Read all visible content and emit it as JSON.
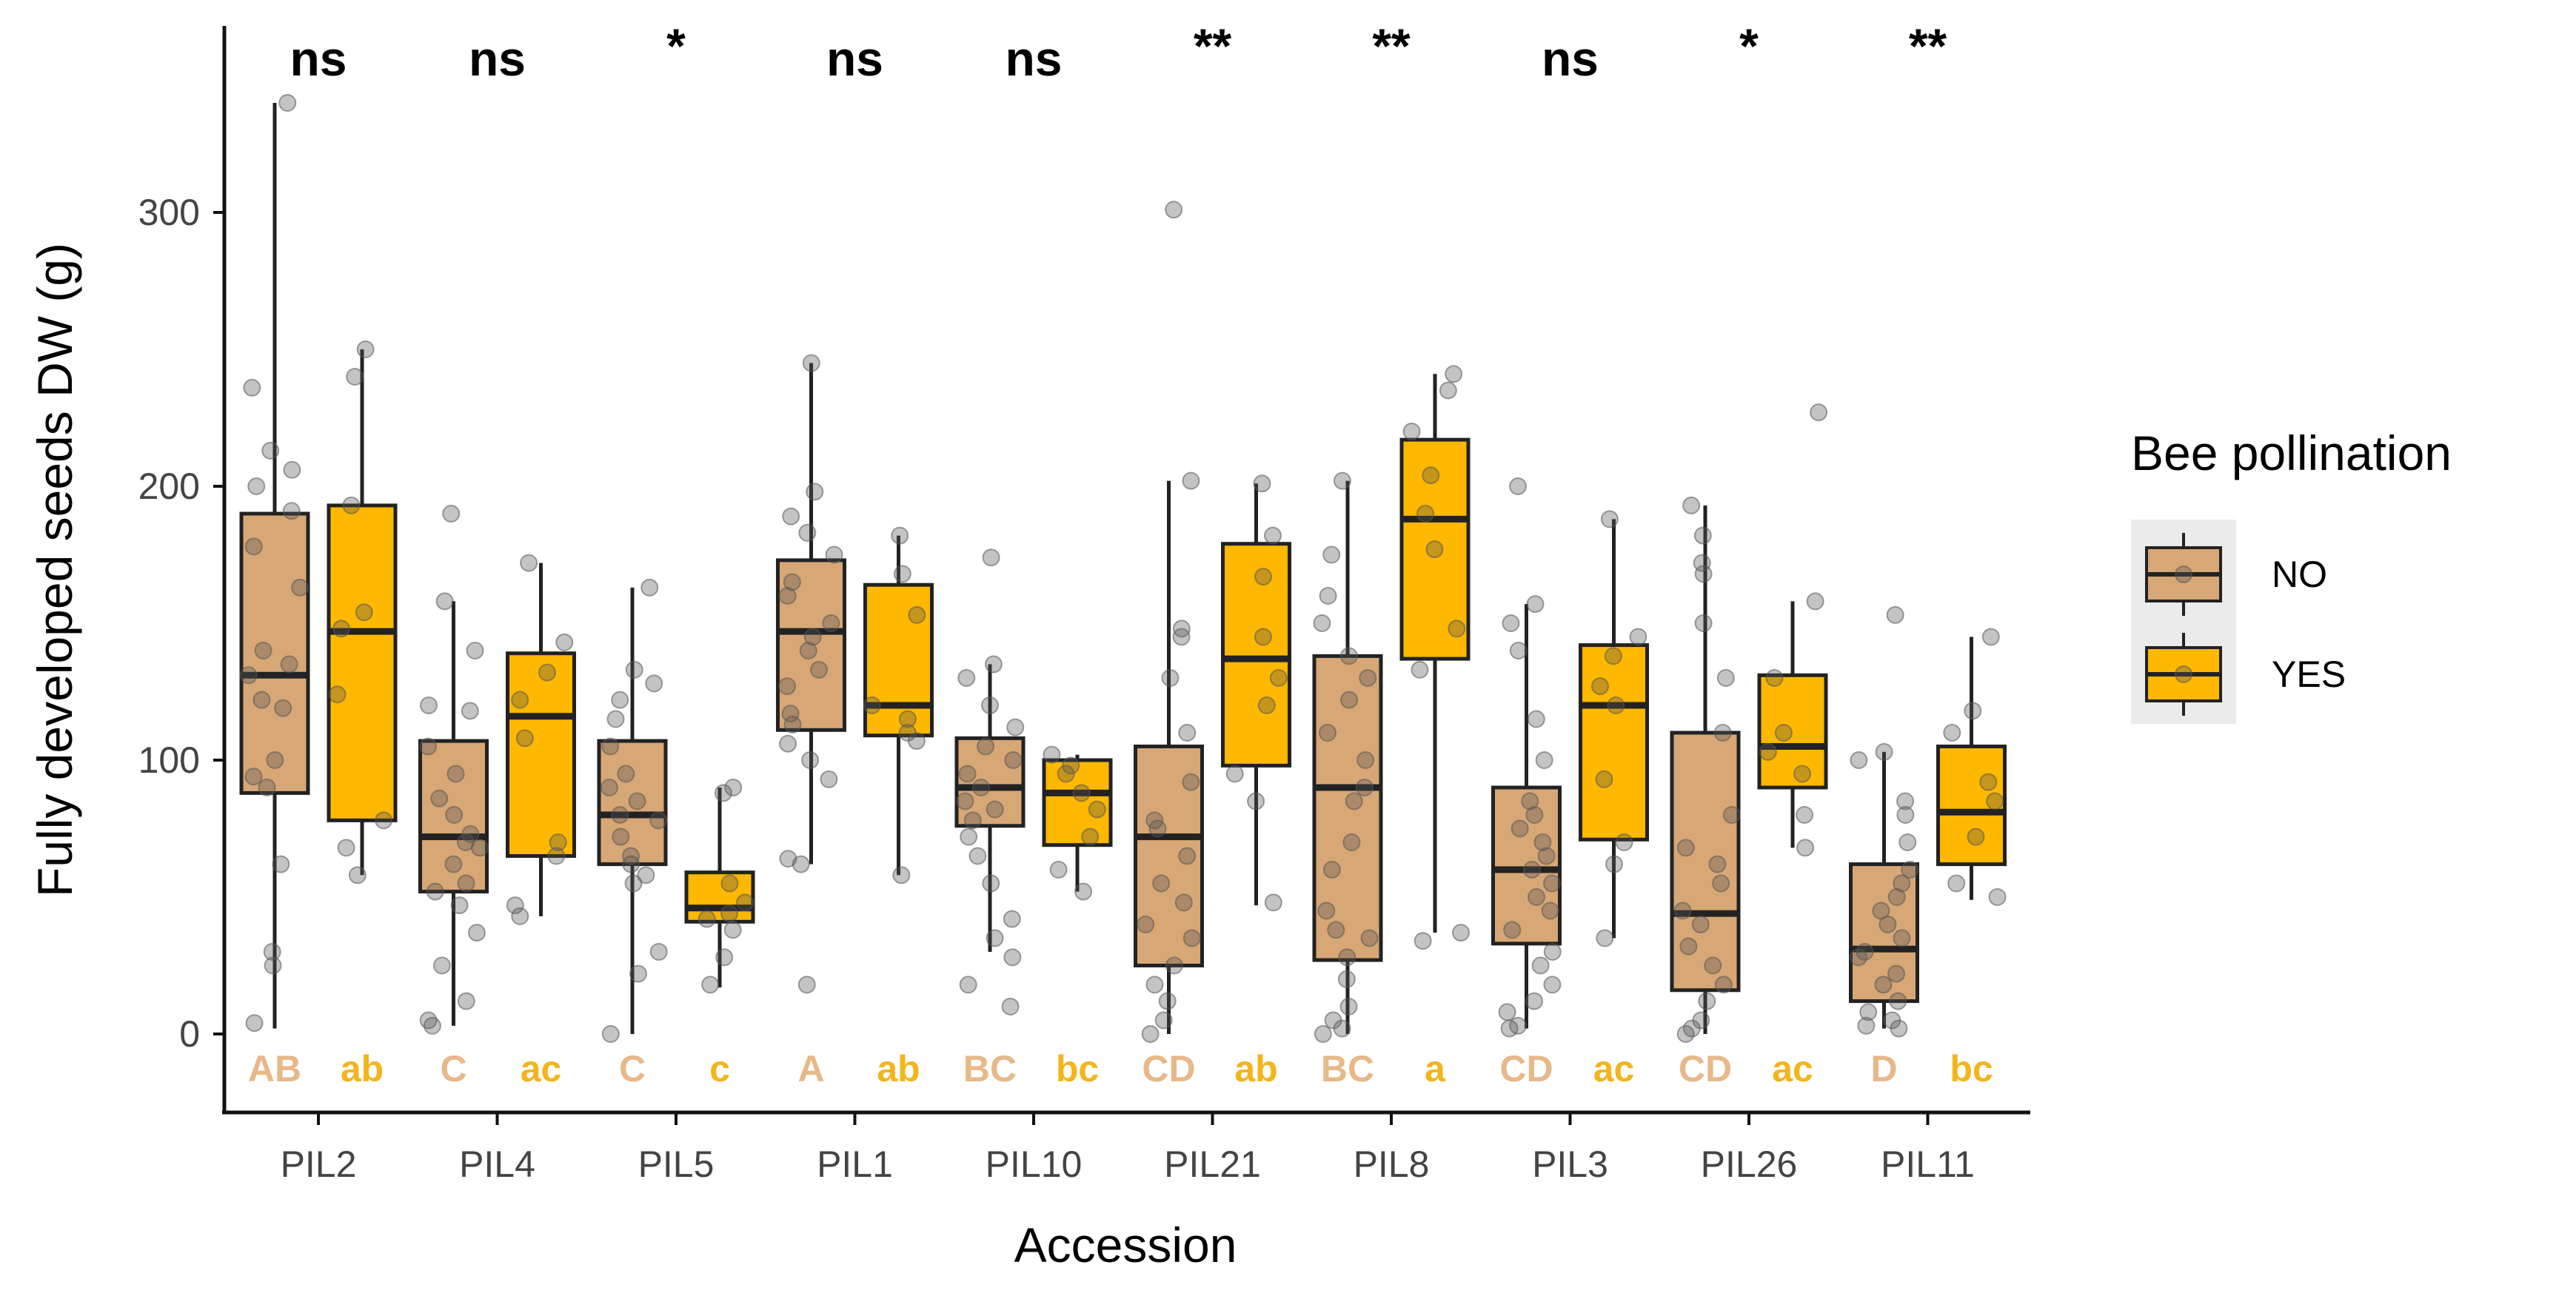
{
  "chart_data": {
    "type": "boxplot",
    "xlabel": "Accession",
    "ylabel": "Fully developed seeds DW (g)",
    "ylim": [
      -30,
      365
    ],
    "yticks": [
      0,
      100,
      200,
      300
    ],
    "legend": {
      "title": "Bee pollination",
      "position": "right",
      "items": [
        {
          "label": "NO",
          "color": "#D7A775"
        },
        {
          "label": "YES",
          "color": "#FFB800"
        }
      ]
    },
    "colors": {
      "NO": "#D7A775",
      "YES": "#FFB800",
      "NO_letter": "#E8B888",
      "YES_letter": "#F4B51B",
      "outline": "#222222",
      "point": "#555555"
    },
    "categories": [
      {
        "name": "PIL2",
        "significance": "ns",
        "NO": {
          "min": 2,
          "q1": 88,
          "median": 131,
          "q3": 190,
          "max": 340,
          "letter": "AB",
          "points": [
            340,
            236,
            213,
            206,
            200,
            191,
            178,
            163,
            140,
            135,
            131,
            122,
            119,
            100,
            94,
            90,
            62,
            30,
            25,
            4
          ]
        },
        "YES": {
          "min": 58,
          "q1": 78,
          "median": 147,
          "q3": 193,
          "max": 250,
          "letter": "ab",
          "points": [
            250,
            240,
            193,
            154,
            148,
            124,
            78,
            68,
            58
          ]
        }
      },
      {
        "name": "PIL4",
        "significance": "ns",
        "NO": {
          "min": 3,
          "q1": 52,
          "median": 72,
          "q3": 107,
          "max": 158,
          "letter": "C",
          "points": [
            190,
            158,
            140,
            120,
            118,
            105,
            95,
            86,
            80,
            73,
            70,
            68,
            62,
            55,
            52,
            47,
            37,
            25,
            12,
            5,
            3
          ]
        },
        "YES": {
          "min": 43,
          "q1": 65,
          "median": 116,
          "q3": 139,
          "max": 172,
          "letter": "ac",
          "points": [
            172,
            143,
            132,
            122,
            108,
            70,
            65,
            47,
            43
          ]
        }
      },
      {
        "name": "PIL5",
        "significance": "*",
        "NO": {
          "min": 0,
          "q1": 62,
          "median": 80,
          "q3": 107,
          "max": 163,
          "letter": "C",
          "points": [
            163,
            133,
            128,
            122,
            115,
            105,
            95,
            90,
            85,
            80,
            78,
            72,
            65,
            62,
            58,
            55,
            30,
            22,
            0
          ]
        },
        "YES": {
          "min": 17,
          "q1": 41,
          "median": 46,
          "q3": 59,
          "max": 90,
          "letter": "c",
          "points": [
            90,
            88,
            55,
            48,
            44,
            42,
            38,
            28,
            18
          ]
        }
      },
      {
        "name": "PIL1",
        "significance": "ns",
        "NO": {
          "min": 62,
          "q1": 111,
          "median": 147,
          "q3": 173,
          "max": 245,
          "letter": "A",
          "points": [
            245,
            198,
            189,
            183,
            175,
            165,
            160,
            150,
            145,
            140,
            133,
            127,
            117,
            113,
            106,
            100,
            93,
            64,
            62,
            18
          ]
        },
        "YES": {
          "min": 58,
          "q1": 109,
          "median": 120,
          "q3": 164,
          "max": 182,
          "letter": "ab",
          "points": [
            182,
            168,
            153,
            120,
            115,
            110,
            107,
            58
          ]
        }
      },
      {
        "name": "PIL10",
        "significance": "ns",
        "NO": {
          "min": 30,
          "q1": 76,
          "median": 90,
          "q3": 108,
          "max": 135,
          "letter": "BC",
          "points": [
            174,
            135,
            130,
            120,
            112,
            105,
            100,
            95,
            90,
            85,
            82,
            78,
            72,
            65,
            55,
            42,
            35,
            28,
            18,
            10
          ]
        },
        "YES": {
          "min": 52,
          "q1": 69,
          "median": 88,
          "q3": 100,
          "max": 102,
          "letter": "bc",
          "points": [
            102,
            98,
            95,
            88,
            82,
            72,
            60,
            52
          ]
        }
      },
      {
        "name": "PIL21",
        "significance": "**",
        "NO": {
          "min": 0,
          "q1": 25,
          "median": 72,
          "q3": 105,
          "max": 202,
          "letter": "CD",
          "points": [
            301,
            202,
            148,
            145,
            130,
            110,
            92,
            78,
            75,
            65,
            55,
            48,
            40,
            35,
            25,
            18,
            12,
            5,
            0
          ]
        },
        "YES": {
          "min": 47,
          "q1": 98,
          "median": 137,
          "q3": 179,
          "max": 201,
          "letter": "ab",
          "points": [
            201,
            182,
            167,
            145,
            130,
            120,
            95,
            85,
            48
          ]
        }
      },
      {
        "name": "PIL8",
        "significance": "**",
        "NO": {
          "min": 0,
          "q1": 27,
          "median": 90,
          "q3": 138,
          "max": 202,
          "letter": "BC",
          "points": [
            202,
            175,
            160,
            150,
            138,
            130,
            122,
            110,
            100,
            90,
            85,
            70,
            60,
            45,
            38,
            35,
            28,
            20,
            10,
            5,
            2,
            0
          ]
        },
        "YES": {
          "min": 37,
          "q1": 137,
          "median": 188,
          "q3": 217,
          "max": 241,
          "letter": "a",
          "points": [
            241,
            235,
            220,
            204,
            190,
            177,
            148,
            133,
            37,
            34
          ]
        }
      },
      {
        "name": "PIL3",
        "significance": "ns",
        "NO": {
          "min": 2,
          "q1": 33,
          "median": 60,
          "q3": 90,
          "max": 157,
          "letter": "CD",
          "points": [
            200,
            157,
            150,
            140,
            115,
            100,
            85,
            80,
            75,
            70,
            65,
            60,
            55,
            50,
            45,
            38,
            30,
            25,
            18,
            12,
            8,
            3,
            2
          ]
        },
        "YES": {
          "min": 35,
          "q1": 71,
          "median": 120,
          "q3": 142,
          "max": 188,
          "letter": "ac",
          "points": [
            188,
            145,
            138,
            127,
            120,
            93,
            70,
            62,
            35
          ]
        }
      },
      {
        "name": "PIL26",
        "significance": "*",
        "NO": {
          "min": 0,
          "q1": 16,
          "median": 44,
          "q3": 110,
          "max": 193,
          "letter": "CD",
          "points": [
            193,
            182,
            172,
            168,
            150,
            130,
            110,
            80,
            68,
            62,
            55,
            45,
            40,
            32,
            25,
            18,
            12,
            5,
            2,
            0
          ]
        },
        "YES": {
          "min": 68,
          "q1": 90,
          "median": 105,
          "q3": 131,
          "max": 158,
          "letter": "ac",
          "points": [
            227,
            158,
            130,
            110,
            103,
            95,
            80,
            68
          ]
        }
      },
      {
        "name": "PIL11",
        "significance": "**",
        "NO": {
          "min": 2,
          "q1": 12,
          "median": 31,
          "q3": 62,
          "max": 103,
          "letter": "D",
          "points": [
            153,
            103,
            100,
            85,
            80,
            70,
            60,
            55,
            50,
            45,
            40,
            35,
            30,
            28,
            22,
            18,
            12,
            8,
            5,
            3,
            2
          ]
        },
        "YES": {
          "min": 49,
          "q1": 62,
          "median": 81,
          "q3": 105,
          "max": 145,
          "letter": "bc",
          "points": [
            145,
            118,
            110,
            92,
            85,
            72,
            55,
            50
          ]
        }
      }
    ]
  }
}
